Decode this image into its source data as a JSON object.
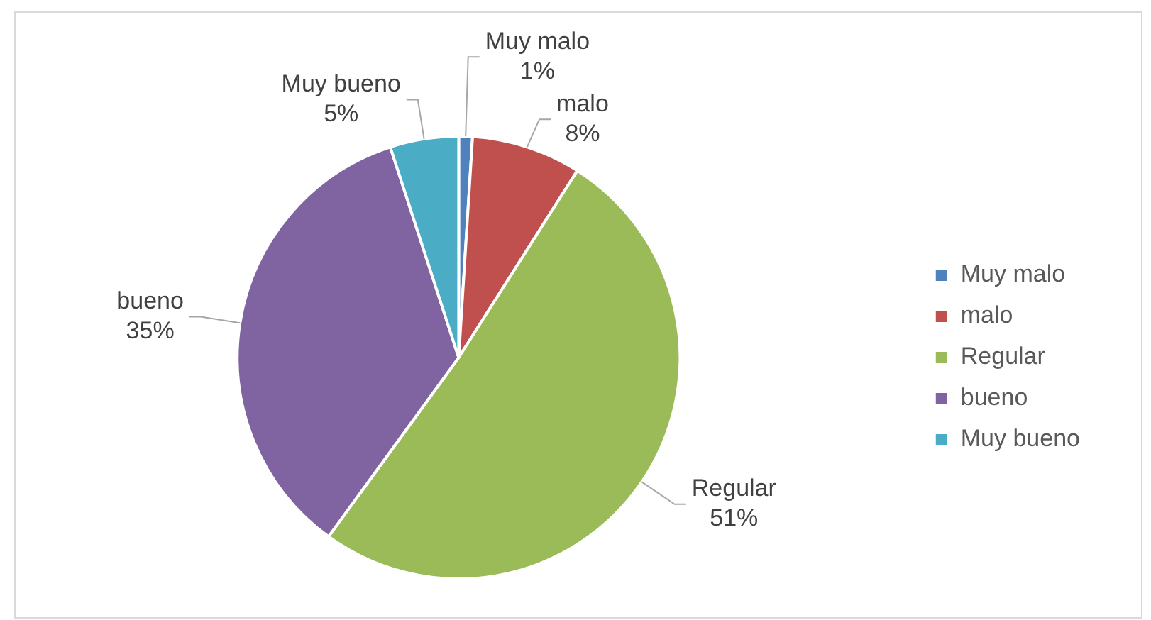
{
  "chart_data": {
    "type": "pie",
    "categories": [
      "Muy malo",
      "malo",
      "Regular",
      "bueno",
      "Muy bueno"
    ],
    "values": [
      1,
      8,
      51,
      35,
      5
    ],
    "value_labels": [
      "1%",
      "8%",
      "51%",
      "35%",
      "5%"
    ],
    "colors": [
      "#4f81bd",
      "#c0504d",
      "#9bbb59",
      "#8064a2",
      "#4bacc6"
    ],
    "legend": "right"
  }
}
